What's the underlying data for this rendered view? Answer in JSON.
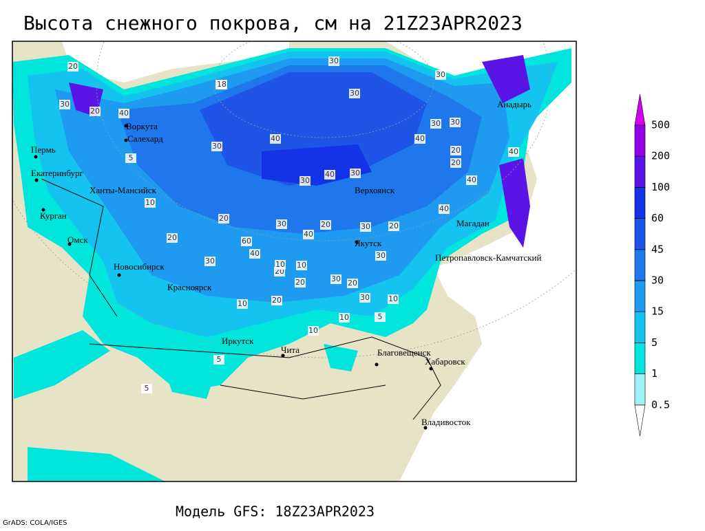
{
  "title": "Высота снежного покрова, см на 21Z23APR2023",
  "footer": "Модель GFS: 18Z23APR2023",
  "credit": "GrADS: COLA/IGES",
  "cities": [
    "Воркута",
    "Салехард",
    "Пермь",
    "Екатеринбург",
    "Ханты-Мансийск",
    "Курган",
    "Омск",
    "Новосибирск",
    "Красноярск",
    "Иркутск",
    "Чита",
    "Благовещенск",
    "Хабаровск",
    "Владивосток",
    "Верхоянск",
    "Якутск",
    "Магадан",
    "Анадырь",
    "Петропавловск-Камчатский"
  ],
  "contour_labels": [
    20,
    30,
    40,
    18,
    40,
    30,
    20,
    30,
    40,
    30,
    40,
    20,
    40,
    30,
    40,
    30,
    5,
    10,
    20,
    30,
    40,
    60,
    30,
    40,
    20,
    30,
    20,
    20,
    30,
    20,
    10,
    20,
    5,
    10,
    30,
    20,
    10,
    5,
    10,
    20,
    30,
    10,
    40,
    30,
    40,
    20,
    5,
    30,
    10,
    30
  ],
  "colorbar": {
    "levels": [
      0.5,
      1,
      5,
      15,
      30,
      45,
      60,
      100,
      200,
      500
    ],
    "colors": [
      "#ffffff",
      "#a0f0f5",
      "#00e6dc",
      "#14c3f0",
      "#1e9bf0",
      "#1e78eb",
      "#1e55e6",
      "#1432e6",
      "#5a14e6",
      "#9600e6",
      "#d200f0"
    ]
  }
}
